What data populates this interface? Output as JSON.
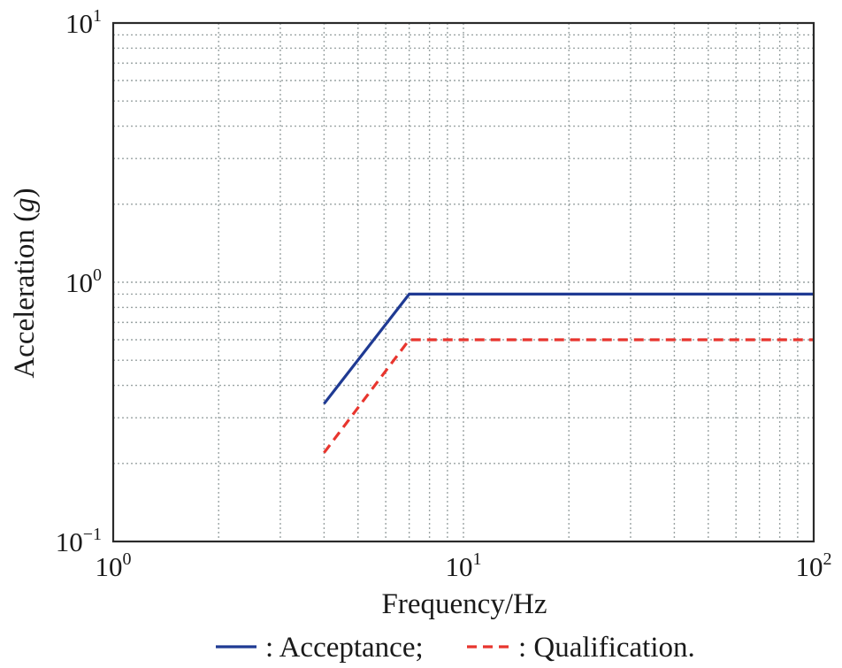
{
  "chart_data": {
    "type": "line",
    "xlabel": "Frequency/Hz",
    "ylabel_main": "Acceleration (",
    "ylabel_unit": "g",
    "ylabel_close": ")",
    "x_scale": "log",
    "y_scale": "log",
    "xlim": [
      1,
      100
    ],
    "ylim": [
      0.1,
      10
    ],
    "grid": true,
    "legend_position": "bottom",
    "x_ticks": [
      {
        "base": "10",
        "exp": "0",
        "value": 1
      },
      {
        "base": "10",
        "exp": "1",
        "value": 10
      },
      {
        "base": "10",
        "exp": "2",
        "value": 100
      }
    ],
    "y_ticks": [
      {
        "base": "10",
        "exp": "−1",
        "value": 0.1
      },
      {
        "base": "10",
        "exp": "0",
        "value": 1
      },
      {
        "base": "10",
        "exp": "1",
        "value": 10
      }
    ],
    "series": [
      {
        "name": ": Acceptance;",
        "color": "#1f3a93",
        "style": "solid",
        "x": [
          4,
          7,
          100
        ],
        "y": [
          0.34,
          0.9,
          0.9
        ]
      },
      {
        "name": ": Qualification.",
        "color": "#e8352e",
        "style": "dashed",
        "x": [
          4,
          7,
          100
        ],
        "y": [
          0.22,
          0.6,
          0.6
        ]
      }
    ]
  }
}
